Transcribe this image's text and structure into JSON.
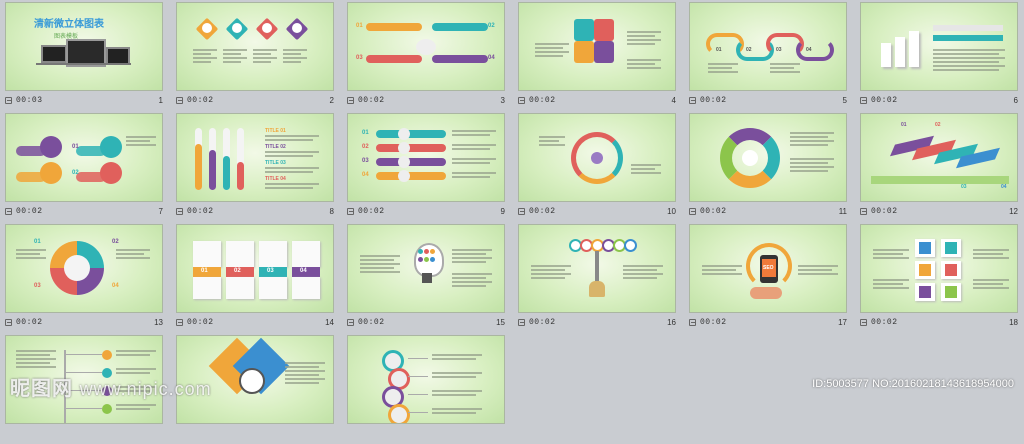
{
  "slides": [
    {
      "duration": "00:03",
      "number": "1",
      "title": "清新微立体图表",
      "subtitle": "图表模板"
    },
    {
      "duration": "00:02",
      "number": "2"
    },
    {
      "duration": "00:02",
      "number": "3",
      "labels": [
        "01",
        "02",
        "03",
        "04"
      ]
    },
    {
      "duration": "00:02",
      "number": "4"
    },
    {
      "duration": "00:02",
      "number": "5",
      "labels": [
        "01",
        "02",
        "03",
        "04"
      ]
    },
    {
      "duration": "00:02",
      "number": "6"
    },
    {
      "duration": "00:02",
      "number": "7",
      "labels": [
        "01",
        "02"
      ]
    },
    {
      "duration": "00:02",
      "number": "8",
      "labels": [
        "TITLE 01",
        "TITLE 02",
        "TITLE 03",
        "TITLE 04"
      ]
    },
    {
      "duration": "00:02",
      "number": "9",
      "labels": [
        "01",
        "02",
        "03",
        "04"
      ]
    },
    {
      "duration": "00:02",
      "number": "10"
    },
    {
      "duration": "00:02",
      "number": "11"
    },
    {
      "duration": "00:02",
      "number": "12",
      "labels": [
        "01",
        "02",
        "03",
        "04"
      ]
    },
    {
      "duration": "00:02",
      "number": "13",
      "labels": [
        "01",
        "02",
        "03",
        "04"
      ]
    },
    {
      "duration": "00:02",
      "number": "14",
      "labels": [
        "01",
        "02",
        "03",
        "04"
      ]
    },
    {
      "duration": "00:02",
      "number": "15"
    },
    {
      "duration": "00:02",
      "number": "16"
    },
    {
      "duration": "00:02",
      "number": "17",
      "labels": [
        "SEO"
      ]
    },
    {
      "duration": "00:02",
      "number": "18"
    },
    {
      "duration": "",
      "number": ""
    },
    {
      "duration": "",
      "number": ""
    },
    {
      "duration": "",
      "number": ""
    }
  ],
  "watermark": {
    "left_logo": "昵图网",
    "left_site": "www.nipic.com",
    "right": "ID:5003577 NO:20160218143618954000"
  },
  "colors": {
    "purple": "#7a4f9c",
    "red": "#e0605c",
    "teal": "#2fb3b5",
    "orange": "#f0a63a",
    "blue": "#3b8fd0",
    "green": "#8cc54b"
  }
}
